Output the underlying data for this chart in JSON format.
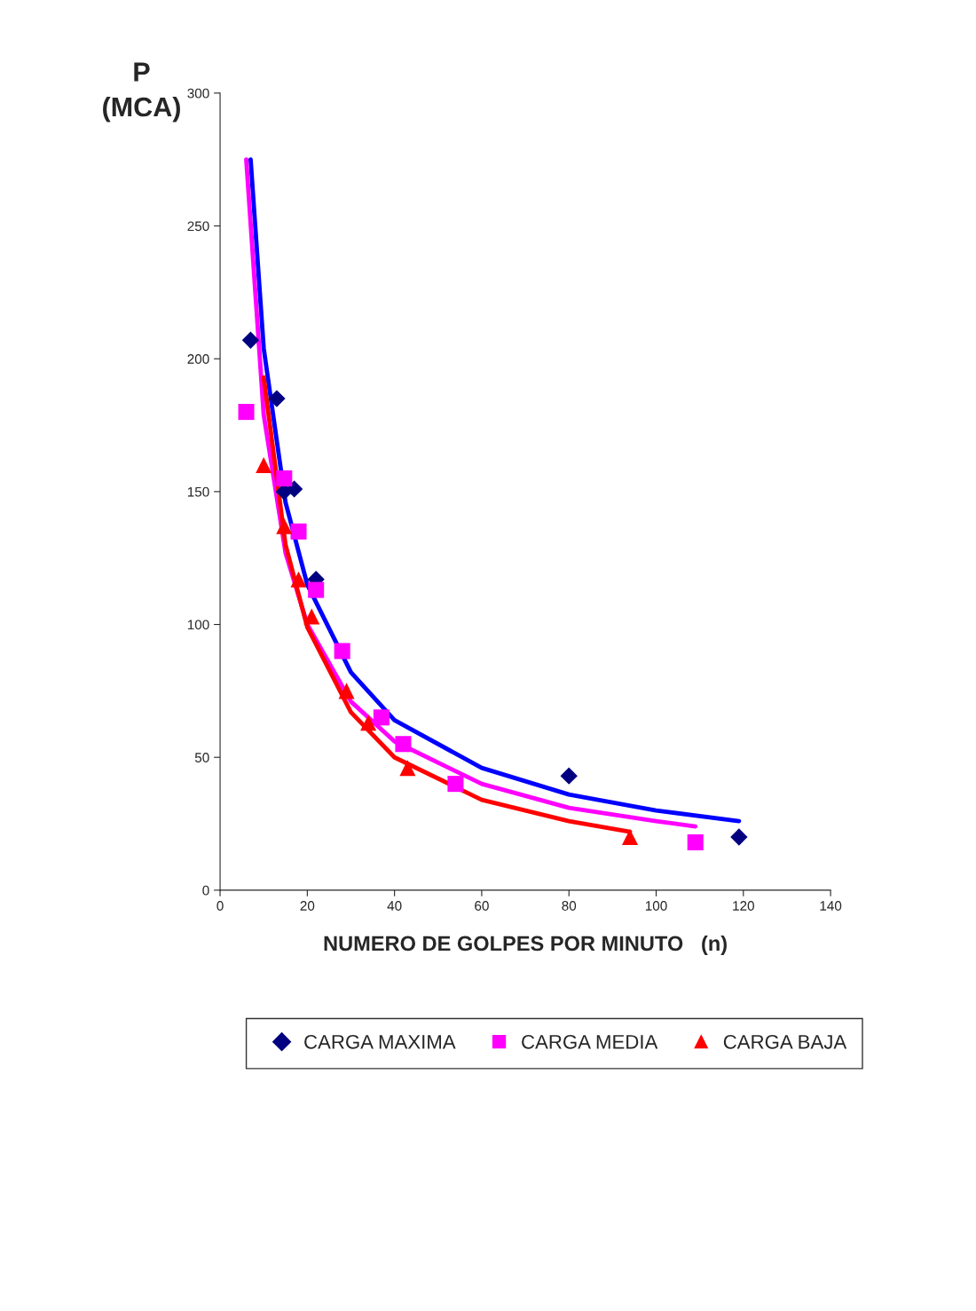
{
  "chart_data": {
    "type": "scatter",
    "ylabel": "P\n(MCA)",
    "xlabel": "NUMERO DE GOLPES POR MINUTO   (n)",
    "xlim": [
      0,
      140
    ],
    "xticks": [
      0,
      20,
      40,
      60,
      80,
      100,
      120,
      140
    ],
    "ylim": [
      0,
      300
    ],
    "yticks": [
      0,
      50,
      100,
      150,
      200,
      250,
      300
    ],
    "grid": false,
    "legend": "bottom",
    "series": [
      {
        "name": "CARGA MAXIMA",
        "color": "#000080",
        "marker": "diamond",
        "x": [
          7,
          13,
          14.7,
          17,
          22,
          80,
          119
        ],
        "values": [
          207,
          185,
          150,
          151,
          117,
          43,
          20
        ]
      },
      {
        "name": "CARGA MEDIA",
        "color": "#ff00ff",
        "marker": "square",
        "x": [
          6,
          14.7,
          18,
          22,
          28,
          37,
          42,
          54,
          109
        ],
        "values": [
          180,
          155,
          135,
          113,
          90,
          65,
          55,
          40,
          18
        ]
      },
      {
        "name": "CARGA BAJA",
        "color": "#ff0000",
        "marker": "triangle",
        "x": [
          10,
          14.7,
          18,
          21,
          29,
          34,
          43,
          94
        ],
        "values": [
          160,
          137,
          117,
          103,
          75,
          63,
          46,
          20
        ]
      },
      {
        "type": "line",
        "color": "#0000ff",
        "x": [
          7,
          10,
          15,
          20,
          30,
          40,
          60,
          80,
          100,
          119
        ],
        "values": [
          275,
          204,
          146,
          115,
          82,
          64,
          46,
          36,
          30,
          26
        ]
      },
      {
        "type": "line",
        "color": "#ff00ff",
        "x": [
          6,
          10,
          15,
          20,
          30,
          40,
          60,
          80,
          100,
          109
        ],
        "values": [
          275,
          179,
          127,
          100,
          71,
          56,
          40,
          31,
          26,
          24
        ]
      },
      {
        "type": "line",
        "color": "#ff0000",
        "x": [
          10,
          15,
          20,
          30,
          40,
          60,
          80,
          94
        ],
        "values": [
          193,
          130,
          99,
          67,
          50,
          34,
          26,
          22
        ]
      }
    ]
  }
}
